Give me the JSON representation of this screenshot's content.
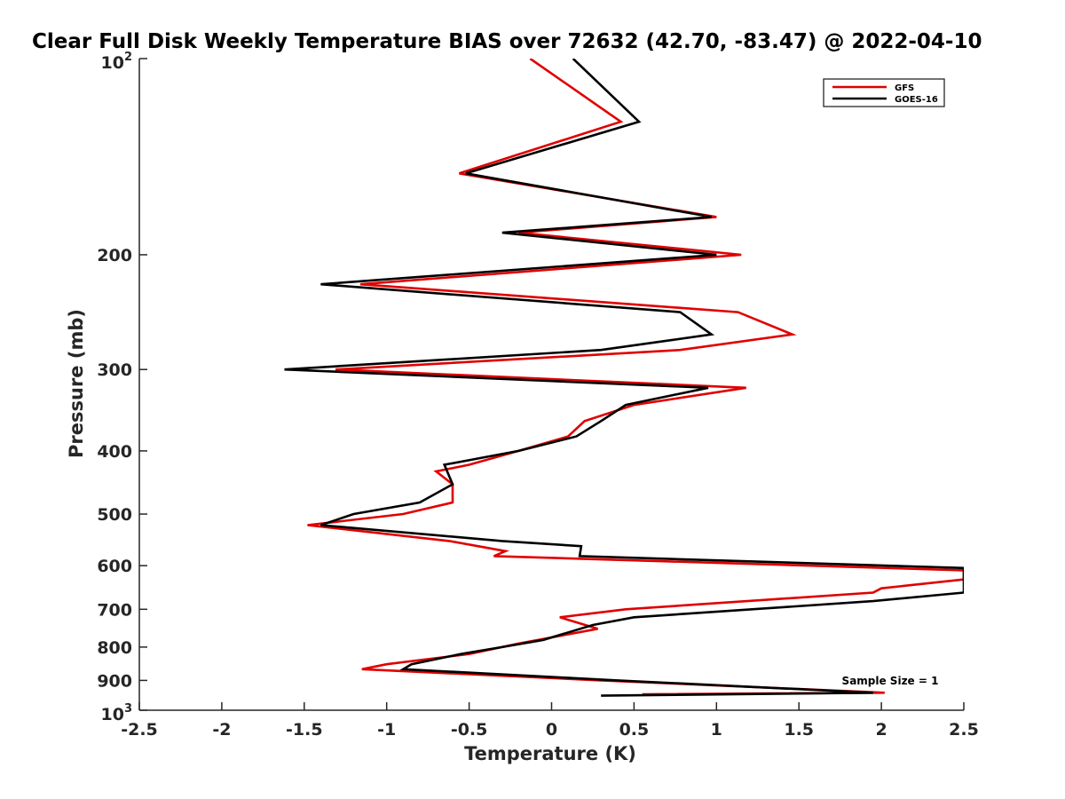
{
  "chart_data": {
    "type": "line",
    "title": "Clear Full Disk Weekly Temperature BIAS over 72632 (42.70, -83.47) @ 2022-04-10",
    "xlabel": "Temperature (K)",
    "ylabel": "Pressure (mb)",
    "xlim": [
      -2.5,
      2.5
    ],
    "ylim": [
      100,
      1000
    ],
    "y_scale": "log",
    "y_reversed": true,
    "x_ticks": [
      -2.5,
      -2,
      -1.5,
      -1,
      -0.5,
      0,
      0.5,
      1,
      1.5,
      2,
      2.5
    ],
    "x_tick_labels": [
      "-2.5",
      "-2",
      "-1.5",
      "-1",
      "-0.5",
      "0",
      "0.5",
      "1",
      "1.5",
      "2",
      "2.5"
    ],
    "y_ticks": [
      200,
      300,
      400,
      500,
      600,
      700,
      800,
      900
    ],
    "y_tick_labels": [
      "200",
      "300",
      "400",
      "500",
      "600",
      "700",
      "800",
      "900"
    ],
    "y_edge_labels": {
      "top": {
        "base": "10",
        "exp": "2",
        "value": 100
      },
      "bottom": {
        "base": "10",
        "exp": "3",
        "value": 1000
      }
    },
    "grid": false,
    "legend_position": "top-right",
    "annotation": "Sample Size = 1",
    "series": [
      {
        "name": "GFS",
        "color": "#e00000",
        "points": [
          [
            -0.13,
            100
          ],
          [
            0.42,
            125
          ],
          [
            -0.56,
            150
          ],
          [
            1.0,
            175
          ],
          [
            -0.2,
            185
          ],
          [
            1.15,
            200
          ],
          [
            -1.16,
            222
          ],
          [
            1.13,
            245
          ],
          [
            1.46,
            265
          ],
          [
            0.78,
            280
          ],
          [
            -1.31,
            300
          ],
          [
            1.18,
            320
          ],
          [
            0.5,
            340
          ],
          [
            0.2,
            360
          ],
          [
            0.1,
            380
          ],
          [
            -0.2,
            400
          ],
          [
            -0.5,
            420
          ],
          [
            -0.7,
            430
          ],
          [
            -0.6,
            450
          ],
          [
            -0.6,
            480
          ],
          [
            -0.9,
            500
          ],
          [
            -1.48,
            520
          ],
          [
            -0.62,
            550
          ],
          [
            -0.28,
            570
          ],
          [
            -0.35,
            580
          ],
          [
            2.5,
            610
          ],
          [
            2.5,
            630
          ],
          [
            2.0,
            650
          ],
          [
            1.95,
            660
          ],
          [
            0.45,
            700
          ],
          [
            0.05,
            720
          ],
          [
            0.28,
            750
          ],
          [
            -0.2,
            790
          ],
          [
            -0.5,
            820
          ],
          [
            -1.0,
            850
          ],
          [
            -1.15,
            865
          ],
          [
            0.3,
            900
          ],
          [
            2.02,
            940
          ],
          [
            0.55,
            945
          ]
        ]
      },
      {
        "name": "GOES-16",
        "color": "#000000",
        "points": [
          [
            0.13,
            100
          ],
          [
            0.53,
            125
          ],
          [
            -0.52,
            150
          ],
          [
            0.97,
            175
          ],
          [
            -0.3,
            185
          ],
          [
            1.0,
            200
          ],
          [
            -1.4,
            222
          ],
          [
            0.78,
            245
          ],
          [
            0.97,
            265
          ],
          [
            0.3,
            280
          ],
          [
            -1.62,
            300
          ],
          [
            0.95,
            320
          ],
          [
            0.45,
            340
          ],
          [
            0.3,
            360
          ],
          [
            0.15,
            380
          ],
          [
            -0.2,
            400
          ],
          [
            -0.65,
            420
          ],
          [
            -0.6,
            450
          ],
          [
            -0.8,
            480
          ],
          [
            -1.2,
            500
          ],
          [
            -1.4,
            520
          ],
          [
            -0.3,
            550
          ],
          [
            0.18,
            560
          ],
          [
            0.17,
            580
          ],
          [
            2.5,
            605
          ],
          [
            2.5,
            660
          ],
          [
            1.95,
            680
          ],
          [
            0.5,
            720
          ],
          [
            0.25,
            740
          ],
          [
            -0.05,
            780
          ],
          [
            -0.3,
            800
          ],
          [
            -0.55,
            820
          ],
          [
            -0.85,
            850
          ],
          [
            -0.9,
            865
          ],
          [
            0.4,
            900
          ],
          [
            1.95,
            940
          ],
          [
            0.3,
            950
          ]
        ]
      }
    ]
  }
}
